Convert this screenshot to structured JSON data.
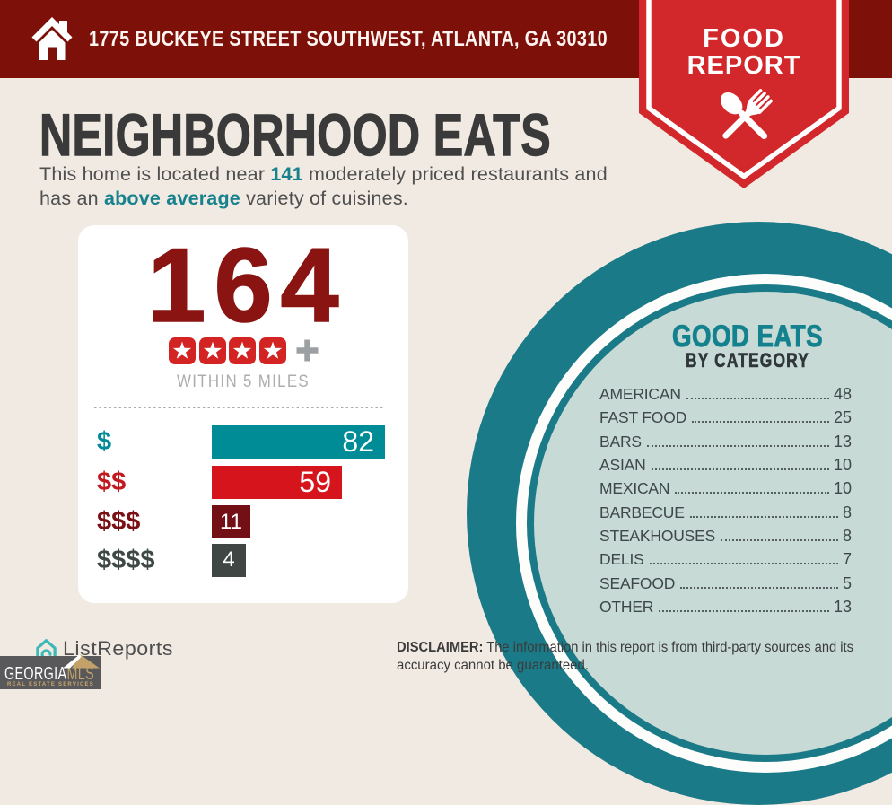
{
  "colors": {
    "background": "#F1EAE3",
    "topbar_maroon": "#7D1008",
    "ribbon_red": "#D2282B",
    "title_charcoal": "#3A3A3A",
    "accent_teal": "#17818D",
    "big_number_maroon": "#8A1412",
    "star_red": "#D32323",
    "outer_circle_teal": "#1B7A87",
    "inner_circle_light_teal": "#C7DAD5",
    "mls_gold": "#C2A268"
  },
  "header": {
    "address": "1775 BUCKEYE STREET SOUTHWEST, ATLANTA, GA 30310"
  },
  "ribbon": {
    "line1": "FOOD",
    "line2": "REPORT"
  },
  "intro": {
    "title": "NEIGHBORHOOD EATS",
    "line1_pre": "This home is located near ",
    "count": "141",
    "line1_post": " moderately priced restaurants and",
    "line2_pre": "has an ",
    "highlight": "above average",
    "line2_post": " variety of cuisines."
  },
  "stats_card": {
    "total": "164",
    "star_count": 4,
    "plus_sign": "+",
    "caption": "WITHIN 5 MILES",
    "price_rows": [
      {
        "label": "$",
        "value": 82,
        "label_color": "#008A93",
        "bar_color": "#008C96"
      },
      {
        "label": "$$",
        "value": 59,
        "label_color": "#C2191F",
        "bar_color": "#D6141C"
      },
      {
        "label": "$$$",
        "value": 11,
        "label_color": "#7A1014",
        "bar_color": "#731015"
      },
      {
        "label": "$$$$",
        "value": 4,
        "label_color": "#3E4845",
        "bar_color": "#3F4643"
      }
    ]
  },
  "good_eats": {
    "title": "GOOD EATS",
    "subtitle": "BY CATEGORY",
    "items": [
      {
        "label": "AMERICAN",
        "value": 48
      },
      {
        "label": "FAST FOOD",
        "value": 25
      },
      {
        "label": "BARS",
        "value": 13
      },
      {
        "label": "ASIAN",
        "value": 10
      },
      {
        "label": "MEXICAN",
        "value": 10
      },
      {
        "label": "BARBECUE",
        "value": 8
      },
      {
        "label": "STEAKHOUSES",
        "value": 8
      },
      {
        "label": "DELIS",
        "value": 7
      },
      {
        "label": "SEAFOOD",
        "value": 5
      },
      {
        "label": "OTHER",
        "value": 13
      }
    ]
  },
  "footer": {
    "brand": "ListReports",
    "mls_primary": "GEORGIA",
    "mls_secondary": "MLS",
    "mls_tagline": "REAL ESTATE SERVICES",
    "disclaimer_label": "DISCLAIMER:",
    "disclaimer_line1": " The information in this report is from third-party sources and its",
    "disclaimer_line2": "accuracy cannot be guaranteed."
  },
  "chart_data": [
    {
      "type": "bar",
      "orientation": "horizontal",
      "title": "164 restaurants within 5 miles by price tier",
      "categories": [
        "$",
        "$$",
        "$$$",
        "$$$$"
      ],
      "values": [
        82,
        59,
        11,
        4
      ],
      "colors": [
        "#008C96",
        "#D6141C",
        "#731015",
        "#3F4643"
      ],
      "xlim": [
        0,
        82
      ],
      "value_labels_inside_bars": true
    },
    {
      "type": "table",
      "title": "GOOD EATS BY CATEGORY",
      "categories": [
        "AMERICAN",
        "FAST FOOD",
        "BARS",
        "ASIAN",
        "MEXICAN",
        "BARBECUE",
        "STEAKHOUSES",
        "DELIS",
        "SEAFOOD",
        "OTHER"
      ],
      "values": [
        48,
        25,
        13,
        10,
        10,
        8,
        8,
        7,
        5,
        13
      ]
    }
  ]
}
